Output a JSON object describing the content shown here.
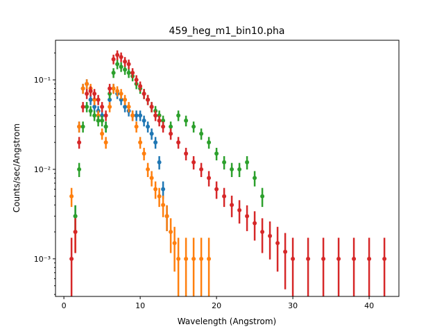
{
  "chart_data": {
    "type": "scatter",
    "title": "459_heg_m1_bin10.pha",
    "xlabel": "Wavelength (Angstrom)",
    "ylabel": "Counts/sec/Angstrom",
    "xlim": [
      -1.1,
      43.9
    ],
    "ylim": [
      0.00038,
      0.277
    ],
    "yscale": "log",
    "grid": false,
    "xticks": [
      0,
      10,
      20,
      30,
      40
    ],
    "xtick_labels": [
      "0",
      "10",
      "20",
      "30",
      "40"
    ],
    "yticks": [
      0.001,
      0.01,
      0.1
    ],
    "ytick_labels": [
      "10⁻³",
      "10⁻²",
      "10⁻¹"
    ],
    "series": [
      {
        "color": "#1f77b4",
        "x": [
          1.5,
          2,
          2.5,
          3,
          3.5,
          4,
          4.5,
          5,
          5.5,
          6,
          6.5,
          7,
          7.5,
          8,
          8.5,
          9,
          9.5,
          10,
          10.5,
          11,
          11.5,
          12,
          12.5,
          13,
          13.5
        ],
        "y": [
          0.003,
          0.03,
          0.08,
          0.09,
          0.06,
          0.05,
          0.045,
          0.04,
          0.03,
          0.06,
          0.08,
          0.07,
          0.06,
          0.05,
          0.045,
          0.04,
          0.04,
          0.04,
          0.035,
          0.03,
          0.025,
          0.02,
          0.012,
          0.006,
          0.003
        ]
      },
      {
        "color": "#ff7f0e",
        "x": [
          1,
          1.5,
          2,
          2.5,
          3,
          3.5,
          4,
          4.5,
          5,
          5.5,
          6,
          6.5,
          7,
          7.5,
          8,
          8.5,
          9,
          9.5,
          10,
          10.5,
          11,
          11.5,
          12,
          12.5,
          13,
          13.5,
          14,
          14.5,
          15,
          16,
          17,
          18,
          19
        ],
        "y": [
          0.005,
          0.002,
          0.03,
          0.08,
          0.09,
          0.08,
          0.06,
          0.04,
          0.025,
          0.02,
          0.05,
          0.08,
          0.075,
          0.07,
          0.06,
          0.05,
          0.04,
          0.03,
          0.02,
          0.015,
          0.01,
          0.008,
          0.006,
          0.005,
          0.004,
          0.003,
          0.002,
          0.0015,
          0.001,
          0.001,
          0.001,
          0.001,
          0.001
        ]
      },
      {
        "color": "#2ca02c",
        "x": [
          1.5,
          2,
          2.5,
          3,
          3.5,
          4,
          4.5,
          5,
          5.5,
          6,
          6.5,
          7,
          7.5,
          8,
          8.5,
          9,
          9.5,
          10,
          10.5,
          11,
          11.5,
          12,
          12.5,
          13,
          14,
          15,
          16,
          17,
          18,
          19,
          20,
          21,
          22,
          23,
          24,
          25,
          26
        ],
        "y": [
          0.003,
          0.01,
          0.03,
          0.05,
          0.045,
          0.04,
          0.035,
          0.035,
          0.03,
          0.07,
          0.12,
          0.15,
          0.14,
          0.13,
          0.12,
          0.11,
          0.09,
          0.08,
          0.07,
          0.06,
          0.05,
          0.045,
          0.04,
          0.035,
          0.03,
          0.04,
          0.035,
          0.03,
          0.025,
          0.02,
          0.015,
          0.012,
          0.01,
          0.01,
          0.012,
          0.008,
          0.005
        ]
      },
      {
        "color": "#d62728",
        "x": [
          1,
          1.5,
          2,
          2.5,
          3,
          3.5,
          4,
          4.5,
          5,
          5.5,
          6,
          6.5,
          7,
          7.5,
          8,
          8.5,
          9,
          9.5,
          10,
          10.5,
          11,
          11.5,
          12,
          12.5,
          13,
          14,
          15,
          16,
          17,
          18,
          19,
          20,
          21,
          22,
          23,
          24,
          25,
          26,
          27,
          28,
          29,
          30,
          32,
          34,
          36,
          38,
          40,
          42
        ],
        "y": [
          0.001,
          0.002,
          0.02,
          0.05,
          0.07,
          0.075,
          0.07,
          0.06,
          0.05,
          0.04,
          0.08,
          0.17,
          0.19,
          0.18,
          0.16,
          0.15,
          0.12,
          0.1,
          0.085,
          0.07,
          0.06,
          0.05,
          0.04,
          0.035,
          0.03,
          0.025,
          0.02,
          0.015,
          0.012,
          0.01,
          0.008,
          0.006,
          0.005,
          0.004,
          0.0035,
          0.003,
          0.0025,
          0.002,
          0.0018,
          0.0015,
          0.0012,
          0.001,
          0.001,
          0.001,
          0.001,
          0.001,
          0.001,
          0.001
        ]
      }
    ]
  }
}
